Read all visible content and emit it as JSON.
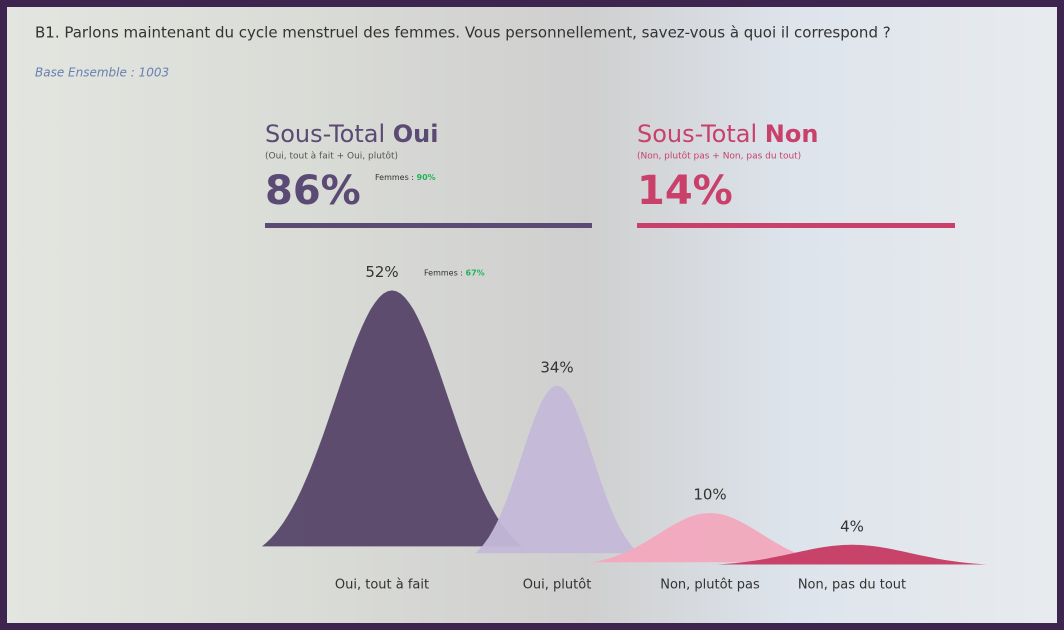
{
  "chart_data": {
    "type": "bell",
    "title": "B1. Parlons maintenant du cycle menstruel des femmes. Vous personnellement, savez-vous à quoi il correspond ?",
    "subtitle": "Base Ensemble : 1003",
    "subtotals": [
      {
        "label": "Sous-Total",
        "emphasis": "Oui",
        "note": "(Oui, tout à fait + Oui, plutôt)",
        "value": 86,
        "value_label": "86%",
        "annotation": {
          "label": "Femmes :",
          "value": "90%"
        },
        "color": "#5b4a73"
      },
      {
        "label": "Sous-Total",
        "emphasis": "Non",
        "note": "(Non, plutôt pas + Non, pas du tout)",
        "value": 14,
        "value_label": "14%",
        "color": "#c9406b"
      }
    ],
    "categories": [
      "Oui, tout à fait",
      "Oui, plutôt",
      "Non, plutôt pas",
      "Non, pas du tout"
    ],
    "values": [
      52,
      34,
      10,
      4
    ],
    "value_labels": [
      "52%",
      "34%",
      "10%",
      "4%"
    ],
    "colors": [
      "#564468",
      "#c4b8d8",
      "#f2a8bd",
      "#c63a63"
    ],
    "annotation": {
      "label": "Femmes :",
      "value": "67%"
    }
  }
}
